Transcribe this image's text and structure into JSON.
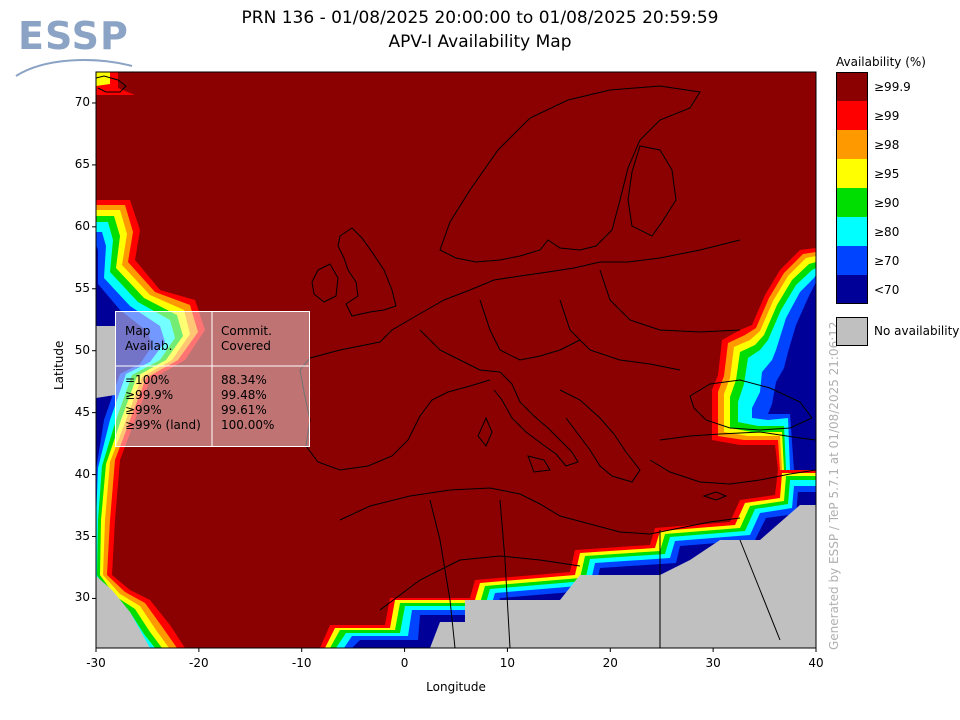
{
  "header": {
    "title_line1": "PRN 136 - 01/08/2025 20:00:00 to 01/08/2025 20:59:59",
    "title_line2": "APV-I Availability Map",
    "logo": "ESSP"
  },
  "axes": {
    "xlabel": "Longitude",
    "ylabel": "Latitude",
    "xticks": [
      "-30",
      "-20",
      "-10",
      "0",
      "10",
      "20",
      "30",
      "40"
    ],
    "yticks": [
      "70",
      "65",
      "60",
      "55",
      "50",
      "45",
      "40",
      "35",
      "30"
    ],
    "xlim": [
      -30,
      40
    ],
    "ylim": [
      26,
      72.5
    ]
  },
  "legend": {
    "title": "Availability (%)",
    "items": [
      {
        "label": "≥99.9",
        "color": "#8b0000"
      },
      {
        "label": "≥99",
        "color": "#ff0000"
      },
      {
        "label": "≥98",
        "color": "#ff9900"
      },
      {
        "label": "≥95",
        "color": "#ffff00"
      },
      {
        "label": "≥90",
        "color": "#00dd00"
      },
      {
        "label": "≥80",
        "color": "#00ffff"
      },
      {
        "label": "≥70",
        "color": "#0044ff"
      },
      {
        "label": "<70",
        "color": "#000099"
      }
    ],
    "no_availability": "No availability"
  },
  "stats_table": {
    "header_left_1": "Map",
    "header_left_2": "Availab.",
    "header_right_1": "Commit.",
    "header_right_2": "Covered",
    "rows": [
      {
        "label": "=100%",
        "value": "88.34%"
      },
      {
        "label": "≥99.9%",
        "value": "99.48%"
      },
      {
        "label": "≥99%",
        "value": "99.61%"
      },
      {
        "label": "≥99% (land)",
        "value": "100.00%"
      }
    ]
  },
  "watermark": "Generated by ESSP / TeP 5.7.1 at 01/08/2025 21:06:12"
}
